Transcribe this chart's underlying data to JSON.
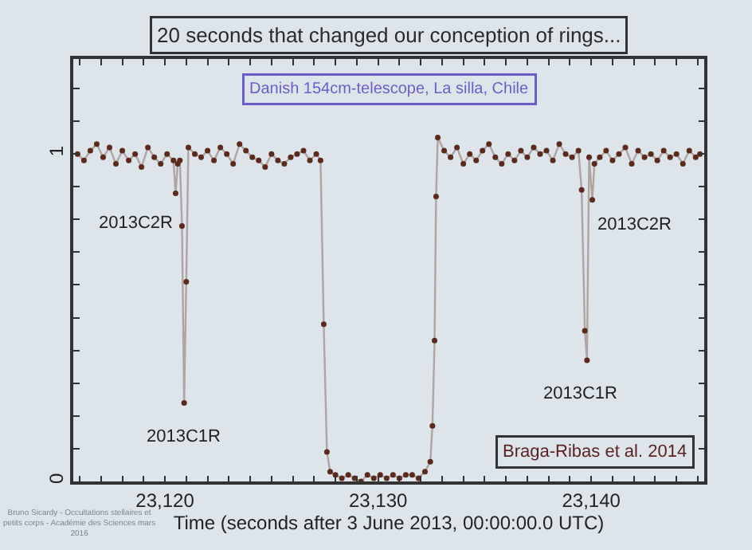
{
  "chart_data": {
    "type": "line",
    "title": "20 seconds that changed our conception of rings...",
    "subtitle": "Danish 154cm-telescope, La silla, Chile",
    "xlabel": "Time (seconds after 3 June 2013, 00:00:00.0 UTC)",
    "x": [
      23115.9,
      23116.2,
      23116.5,
      23116.8,
      23117.1,
      23117.4,
      23117.7,
      23118.0,
      23118.3,
      23118.6,
      23118.9,
      23119.2,
      23119.5,
      23119.8,
      23120.1,
      23120.4,
      23120.5,
      23120.6,
      23120.7,
      23120.8,
      23120.9,
      23121.0,
      23121.1,
      23121.4,
      23121.7,
      23122.0,
      23122.3,
      23122.6,
      23122.9,
      23123.2,
      23123.5,
      23123.8,
      23124.1,
      23124.4,
      23124.7,
      23125.0,
      23125.3,
      23125.6,
      23125.9,
      23126.2,
      23126.5,
      23126.8,
      23127.1,
      23127.3,
      23127.45,
      23127.6,
      23127.75,
      23128.0,
      23128.3,
      23128.6,
      23128.9,
      23129.2,
      23129.5,
      23129.8,
      23130.1,
      23130.4,
      23130.7,
      23131.0,
      23131.3,
      23131.6,
      23131.9,
      23132.2,
      23132.45,
      23132.55,
      23132.65,
      23132.72,
      23132.8,
      23133.1,
      23133.4,
      23133.7,
      23134.0,
      23134.3,
      23134.6,
      23134.9,
      23135.2,
      23135.5,
      23135.8,
      23136.1,
      23136.4,
      23136.7,
      23137.0,
      23137.3,
      23137.6,
      23137.9,
      23138.2,
      23138.5,
      23138.8,
      23139.1,
      23139.4,
      23139.55,
      23139.7,
      23139.8,
      23139.9,
      23140.05,
      23140.15,
      23140.4,
      23140.7,
      23141.0,
      23141.3,
      23141.6,
      23141.9,
      23142.2,
      23142.5,
      23142.8,
      23143.1,
      23143.4,
      23143.7,
      23144.0,
      23144.3,
      23144.6,
      23144.9,
      23145.1
    ],
    "series": [
      {
        "color": "#5b2a1c",
        "values": [
          1.0,
          0.98,
          1.01,
          1.03,
          0.99,
          1.02,
          0.97,
          1.01,
          0.98,
          1.0,
          0.96,
          1.02,
          0.99,
          0.97,
          1.0,
          0.98,
          0.88,
          0.97,
          0.98,
          0.78,
          0.24,
          0.61,
          1.02,
          1.0,
          0.99,
          1.01,
          0.98,
          1.02,
          1.0,
          0.97,
          1.03,
          1.01,
          0.99,
          0.98,
          0.96,
          1.0,
          0.98,
          0.97,
          0.99,
          1.0,
          1.01,
          0.98,
          1.0,
          0.98,
          0.48,
          0.09,
          0.03,
          0.02,
          0.01,
          0.02,
          0.01,
          0.0,
          0.02,
          0.01,
          0.02,
          0.01,
          0.02,
          0.01,
          0.02,
          0.02,
          0.01,
          0.03,
          0.06,
          0.17,
          0.43,
          0.87,
          1.05,
          1.01,
          0.99,
          1.02,
          0.97,
          1.0,
          0.98,
          1.01,
          1.03,
          0.99,
          0.97,
          1.0,
          0.98,
          1.01,
          0.99,
          1.02,
          1.0,
          1.01,
          0.98,
          1.03,
          1.0,
          0.99,
          1.01,
          0.89,
          0.46,
          0.37,
          0.99,
          0.86,
          0.97,
          0.99,
          1.01,
          0.98,
          1.0,
          1.02,
          0.97,
          1.01,
          0.99,
          1.0,
          0.98,
          1.01,
          0.99,
          1.0,
          0.97,
          1.01,
          0.99,
          1.0
        ]
      }
    ],
    "xlim": [
      23115.7,
      23145.3
    ],
    "xticks": [
      {
        "value": 23116,
        "label": null
      },
      {
        "value": 23117,
        "label": null
      },
      {
        "value": 23118,
        "label": null
      },
      {
        "value": 23119,
        "label": null
      },
      {
        "value": 23120,
        "label": "23,120"
      },
      {
        "value": 23121,
        "label": null
      },
      {
        "value": 23122,
        "label": null
      },
      {
        "value": 23123,
        "label": null
      },
      {
        "value": 23124,
        "label": null
      },
      {
        "value": 23125,
        "label": null
      },
      {
        "value": 23126,
        "label": null
      },
      {
        "value": 23127,
        "label": null
      },
      {
        "value": 23128,
        "label": null
      },
      {
        "value": 23129,
        "label": null
      },
      {
        "value": 23130,
        "label": "23,130"
      },
      {
        "value": 23131,
        "label": null
      },
      {
        "value": 23132,
        "label": null
      },
      {
        "value": 23133,
        "label": null
      },
      {
        "value": 23134,
        "label": null
      },
      {
        "value": 23135,
        "label": null
      },
      {
        "value": 23136,
        "label": null
      },
      {
        "value": 23137,
        "label": null
      },
      {
        "value": 23138,
        "label": null
      },
      {
        "value": 23139,
        "label": null
      },
      {
        "value": 23140,
        "label": "23,140"
      },
      {
        "value": 23141,
        "label": null
      },
      {
        "value": 23142,
        "label": null
      },
      {
        "value": 23143,
        "label": null
      },
      {
        "value": 23144,
        "label": null
      },
      {
        "value": 23145,
        "label": null
      }
    ],
    "ylim": [
      0,
      1.29
    ],
    "yticks": [
      0,
      {
        "value": 0.1,
        "label": null
      },
      {
        "value": 0.2,
        "label": null
      },
      {
        "value": 0.3,
        "label": null
      },
      {
        "value": 0.4,
        "label": null
      },
      {
        "value": 0.5,
        "label": null
      },
      {
        "value": 0.6,
        "label": null
      },
      {
        "value": 0.7,
        "label": null
      },
      {
        "value": 0.8,
        "label": null
      },
      {
        "value": 0.9,
        "label": null
      },
      1,
      {
        "value": 1.1,
        "label": null
      },
      {
        "value": 1.2,
        "label": null
      }
    ],
    "marker": "circle",
    "line_style": "solid",
    "annotations": [
      {
        "text": "2013C2R",
        "x": 23120.5,
        "y": 0.88
      },
      {
        "text": "2013C1R",
        "x": 23120.9,
        "y": 0.24
      },
      {
        "text": "2013C1R",
        "x": 23139.8,
        "y": 0.37
      },
      {
        "text": "2013C2R",
        "x": 23140.05,
        "y": 0.86
      },
      "Braga-Ribas et al. 2014",
      "Bruno Sicardy - Occultations stellaires et petits corps - Académie des Sciences mars 2016"
    ]
  }
}
